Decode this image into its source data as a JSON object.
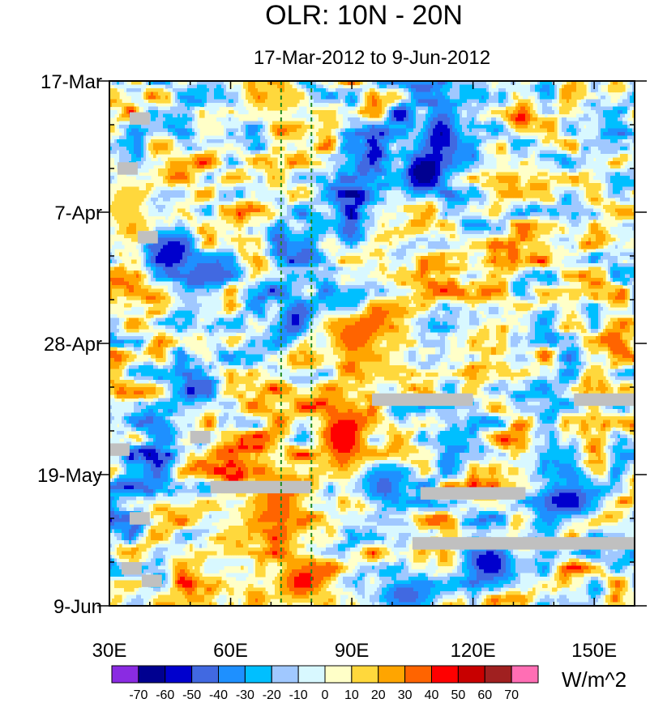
{
  "chart_data": {
    "type": "heatmap",
    "title": "OLR: 10N - 20N",
    "subtitle": "17-Mar-2012 to 9-Jun-2012",
    "x_axis": {
      "range": [
        30,
        160
      ],
      "ticks": [
        {
          "value": 30,
          "label": "30E"
        },
        {
          "value": 60,
          "label": "60E"
        },
        {
          "value": 90,
          "label": "90E"
        },
        {
          "value": 120,
          "label": "120E"
        },
        {
          "value": 150,
          "label": "150E"
        }
      ],
      "minor_step": 10
    },
    "y_axis": {
      "range_days": [
        0,
        84
      ],
      "direction": "time increasing downward",
      "ticks": [
        {
          "day": 0,
          "label": "17-Mar"
        },
        {
          "day": 21,
          "label": "7-Apr"
        },
        {
          "day": 42,
          "label": "28-Apr"
        },
        {
          "day": 63,
          "label": "19-May"
        },
        {
          "day": 84,
          "label": "9-Jun"
        }
      ],
      "minor_step_days": 7
    },
    "reference_lines": [
      {
        "lon": 72.5,
        "style": "dashed",
        "color": "#1f8a1f"
      },
      {
        "lon": 80,
        "style": "dashed",
        "color": "#1f8a1f"
      }
    ],
    "colorbar": {
      "units": "W/m^2",
      "levels": [
        "-70",
        "-60",
        "-50",
        "-40",
        "-30",
        "-20",
        "-10",
        "0",
        "10",
        "20",
        "30",
        "40",
        "50",
        "60",
        "70"
      ],
      "colors": [
        "#8a2be2",
        "#000090",
        "#0000cd",
        "#4169e1",
        "#1e90ff",
        "#00bfff",
        "#a0c8ff",
        "#d8f8ff",
        "#ffffc8",
        "#ffd83c",
        "#ffa500",
        "#ff6400",
        "#ff0000",
        "#c80000",
        "#a02020",
        "#ff6eb4"
      ]
    },
    "anomaly_features": [
      {
        "lon_start": 68,
        "lon_end": 76,
        "day_start": 1,
        "day_end": 6,
        "value": 15
      },
      {
        "lon_start": 30,
        "lon_end": 38,
        "day_start": 16,
        "day_end": 24,
        "value": 20
      },
      {
        "lon_start": 108,
        "lon_end": 116,
        "day_start": 5,
        "day_end": 12,
        "value": -60
      },
      {
        "lon_start": 104,
        "lon_end": 112,
        "day_start": 12,
        "day_end": 17,
        "value": -70
      },
      {
        "lon_start": 40,
        "lon_end": 50,
        "day_start": 26,
        "day_end": 30,
        "value": -60
      },
      {
        "lon_start": 50,
        "lon_end": 60,
        "day_start": 29,
        "day_end": 32,
        "value": -50
      },
      {
        "lon_start": 73,
        "lon_end": 79,
        "day_start": 36,
        "day_end": 41,
        "value": -55
      },
      {
        "lon_start": 84,
        "lon_end": 98,
        "day_start": 38,
        "day_end": 44,
        "value": 35
      },
      {
        "lon_start": 83,
        "lon_end": 92,
        "day_start": 52,
        "day_end": 62,
        "value": 40
      },
      {
        "lon_start": 86,
        "lon_end": 91,
        "day_start": 55,
        "day_end": 59,
        "value": 50
      },
      {
        "lon_start": 66,
        "lon_end": 78,
        "day_start": 63,
        "day_end": 72,
        "value": 35
      },
      {
        "lon_start": 72,
        "lon_end": 84,
        "day_start": 77,
        "day_end": 83,
        "value": 45
      },
      {
        "lon_start": 136,
        "lon_end": 150,
        "day_start": 64,
        "day_end": 70,
        "value": -55
      },
      {
        "lon_start": 118,
        "lon_end": 130,
        "day_start": 74,
        "day_end": 80,
        "value": -60
      },
      {
        "lon_start": 92,
        "lon_end": 104,
        "day_start": 62,
        "day_end": 68,
        "value": -45
      },
      {
        "lon_start": 96,
        "lon_end": 110,
        "day_start": 80,
        "day_end": 84,
        "value": -45
      }
    ],
    "missing_data": [
      {
        "lon_start": 35,
        "lon_end": 40,
        "day_start": 5,
        "day_end": 7
      },
      {
        "lon_start": 32,
        "lon_end": 37,
        "day_start": 13,
        "day_end": 15
      },
      {
        "lon_start": 37,
        "lon_end": 42,
        "day_start": 24,
        "day_end": 26
      },
      {
        "lon_start": 95,
        "lon_end": 120,
        "day_start": 50,
        "day_end": 52
      },
      {
        "lon_start": 145,
        "lon_end": 160,
        "day_start": 50,
        "day_end": 52
      },
      {
        "lon_start": 50,
        "lon_end": 55,
        "day_start": 56,
        "day_end": 58
      },
      {
        "lon_start": 30,
        "lon_end": 35,
        "day_start": 58,
        "day_end": 60
      },
      {
        "lon_start": 55,
        "lon_end": 80,
        "day_start": 64,
        "day_end": 66
      },
      {
        "lon_start": 107,
        "lon_end": 133,
        "day_start": 65,
        "day_end": 67
      },
      {
        "lon_start": 35,
        "lon_end": 40,
        "day_start": 69,
        "day_end": 71
      },
      {
        "lon_start": 105,
        "lon_end": 160,
        "day_start": 73,
        "day_end": 75
      },
      {
        "lon_start": 33,
        "lon_end": 38,
        "day_start": 77,
        "day_end": 79
      },
      {
        "lon_start": 38,
        "lon_end": 43,
        "day_start": 79,
        "day_end": 81
      }
    ]
  }
}
